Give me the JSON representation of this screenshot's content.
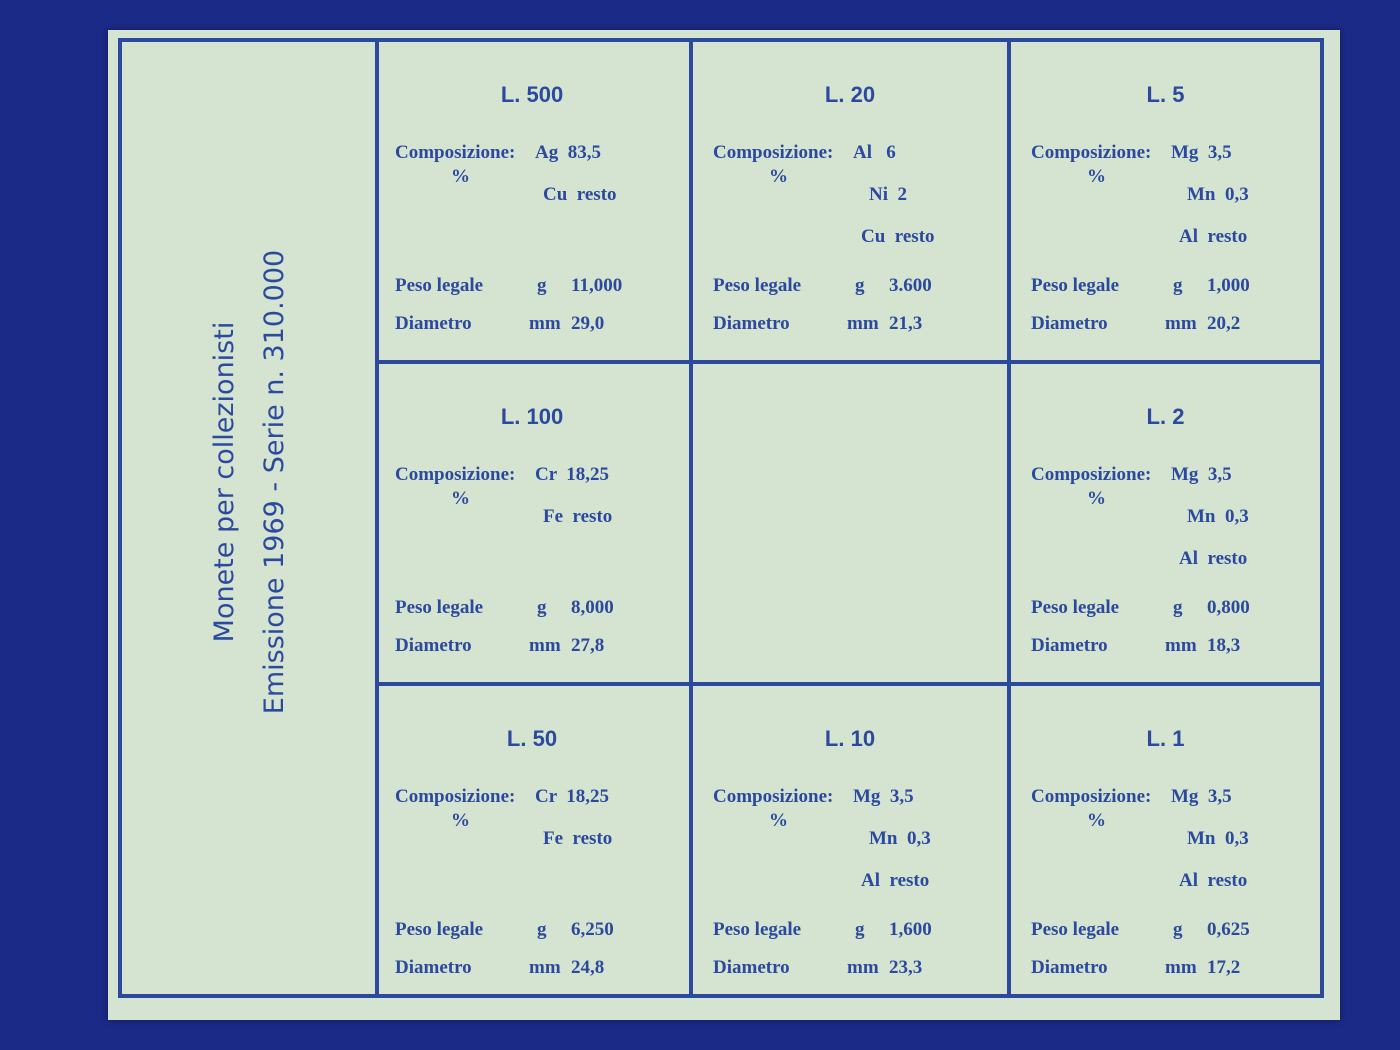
{
  "side": {
    "line1": "Monete per collezionisti",
    "line2": "Emissione 1969 - Serie n. 310.000"
  },
  "labels": {
    "composition": "Composizione:",
    "percent": "%",
    "weight": "Peso legale",
    "weight_unit": "g",
    "diameter": "Diametro",
    "diameter_unit": "mm"
  },
  "colors": {
    "background": "#1b2a86",
    "card": "#d5e3d1",
    "ink": "#2b4a9e"
  },
  "cells": [
    {
      "title": "L. 500",
      "comp": [
        "Ag  83,5",
        "Cu  resto"
      ],
      "weight": "11,000",
      "diameter": "29,0"
    },
    {
      "title": "L. 20",
      "comp": [
        "Al   6",
        "Ni  2",
        "Cu  resto"
      ],
      "weight": "3.600",
      "diameter": "21,3"
    },
    {
      "title": "L. 5",
      "comp": [
        "Mg  3,5",
        "Mn  0,3",
        "Al  resto"
      ],
      "weight": "1,000",
      "diameter": "20,2"
    },
    {
      "title": "L. 100",
      "comp": [
        "Cr  18,25",
        "Fe  resto"
      ],
      "weight": "8,000",
      "diameter": "27,8"
    },
    null,
    {
      "title": "L. 2",
      "comp": [
        "Mg  3,5",
        "Mn  0,3",
        "Al  resto"
      ],
      "weight": "0,800",
      "diameter": "18,3"
    },
    {
      "title": "L. 50",
      "comp": [
        "Cr  18,25",
        "Fe  resto"
      ],
      "weight": "6,250",
      "diameter": "24,8"
    },
    {
      "title": "L. 10",
      "comp": [
        "Mg  3,5",
        "Mn  0,3",
        "Al  resto"
      ],
      "weight": "1,600",
      "diameter": "23,3"
    },
    {
      "title": "L. 1",
      "comp": [
        "Mg  3,5",
        "Mn  0,3",
        "Al  resto"
      ],
      "weight": "0,625",
      "diameter": "17,2"
    }
  ]
}
